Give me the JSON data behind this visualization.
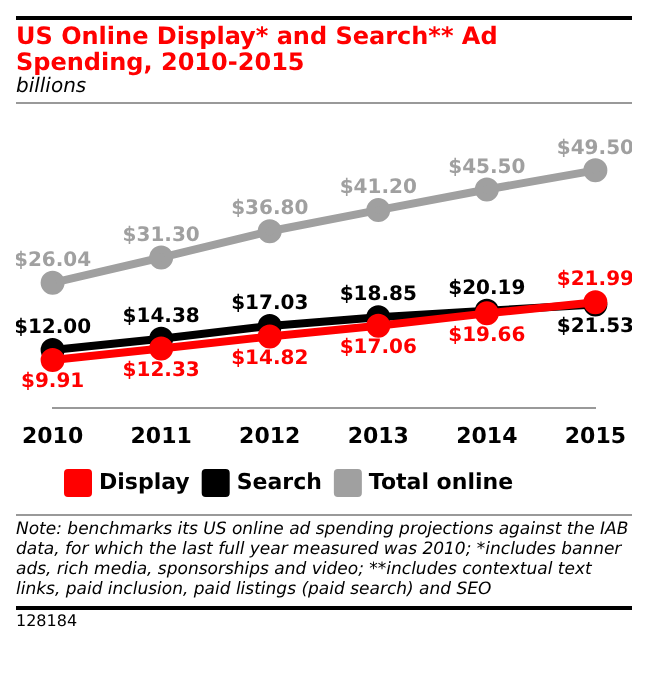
{
  "chart_data": {
    "type": "line",
    "title": "US Online Display* and Search** Ad Spending, 2010-2015",
    "subtitle": "billions",
    "categories": [
      "2010",
      "2011",
      "2012",
      "2013",
      "2014",
      "2015"
    ],
    "series": [
      {
        "name": "Display",
        "color": "#ff0000",
        "values": [
          9.91,
          12.33,
          14.82,
          17.06,
          19.66,
          21.99
        ],
        "value_labels": [
          "$9.91",
          "$12.33",
          "$14.82",
          "$17.06",
          "$19.66",
          "$21.99"
        ]
      },
      {
        "name": "Search",
        "color": "#000000",
        "values": [
          12.0,
          14.38,
          17.03,
          18.85,
          20.19,
          21.53
        ],
        "value_labels": [
          "$12.00",
          "$14.38",
          "$17.03",
          "$18.85",
          "$20.19",
          "$21.53"
        ]
      },
      {
        "name": "Total online",
        "color": "#a0a0a0",
        "values": [
          26.04,
          31.3,
          36.8,
          41.2,
          45.5,
          49.5
        ],
        "value_labels": [
          "$26.04",
          "$31.30",
          "$36.80",
          "$41.20",
          "$45.50",
          "$49.50"
        ]
      }
    ],
    "legend": "bottom left",
    "grid": false,
    "marker": "circle",
    "tick_labels": "x",
    "annotations": [
      "Note: benchmarks its US online ad spending projections against the IAB data, for which the last full year measured was 2010; *includes banner ads, rich media, sponsorships and video; **includes contextual text links, paid inclusion, paid listings (paid search) and SEO",
      "128184"
    ]
  }
}
